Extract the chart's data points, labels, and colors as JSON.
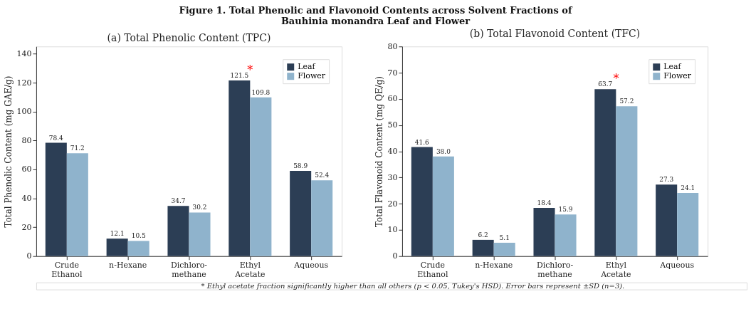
{
  "chart_data": [
    {
      "type": "bar",
      "title": "(a) Total Phenolic Content (TPC)",
      "ylabel": "Total Phenolic Content (mg GAE/g)",
      "categories": [
        "Crude\nEthanol",
        "n-Hexane",
        "Dichloro-\nmethane",
        "Ethyl\nAcetate",
        "Aqueous"
      ],
      "series": [
        {
          "name": "Leaf",
          "color": "#2c3e55",
          "values": [
            78.4,
            12.1,
            34.7,
            121.5,
            58.9
          ],
          "value_labels": [
            "78.4",
            "12.1",
            "34.7",
            "121.5",
            "58.9"
          ]
        },
        {
          "name": "Flower",
          "color": "#8fb3cc",
          "values": [
            71.2,
            10.5,
            30.2,
            109.8,
            52.4
          ],
          "value_labels": [
            "71.2",
            "10.5",
            "30.2",
            "109.8",
            "52.4"
          ]
        }
      ],
      "ylim": [
        0,
        145
      ],
      "yticks": [
        0,
        20,
        40,
        60,
        80,
        100,
        120,
        140
      ],
      "legend": "top right",
      "grid": false,
      "annotations": [
        "Figure 1. Total Phenolic and Flavonoid Contents across Solvent Fractions of\nBauhinia monandra Leaf and Flower",
        {
          "text": "*",
          "x": "Ethyl\nAcetate",
          "y": 121.5
        }
      ]
    },
    {
      "type": "bar",
      "title": "(b) Total Flavonoid Content (TFC)",
      "ylabel": "Total Flavonoid Content (mg QE/g)",
      "categories": [
        "Crude\nEthanol",
        "n-Hexane",
        "Dichloro-\nmethane",
        "Ethyl\nAcetate",
        "Aqueous"
      ],
      "series": [
        {
          "name": "Leaf",
          "color": "#2c3e55",
          "values": [
            41.6,
            6.2,
            18.4,
            63.7,
            27.3
          ],
          "value_labels": [
            "41.6",
            "6.2",
            "18.4",
            "63.7",
            "27.3"
          ]
        },
        {
          "name": "Flower",
          "color": "#8fb3cc",
          "values": [
            38.0,
            5.1,
            15.9,
            57.2,
            24.1
          ],
          "value_labels": [
            "38.0",
            "5.1",
            "15.9",
            "57.2",
            "24.1"
          ]
        }
      ],
      "ylim": [
        0,
        80
      ],
      "yticks": [
        0,
        10,
        20,
        30,
        40,
        50,
        60,
        70,
        80
      ],
      "legend": "top right",
      "grid": false,
      "annotations": [
        {
          "text": "*",
          "x": "Ethyl\nAcetate",
          "y": 63.7
        },
        "* Ethyl acetate fraction significantly higher than all others (p < 0.05, Tukey's HSD). Error bars represent ±SD (n=3)."
      ]
    }
  ]
}
